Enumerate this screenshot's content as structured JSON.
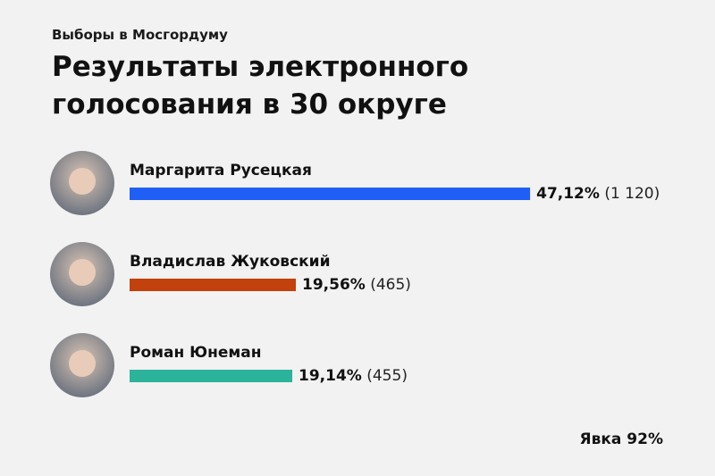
{
  "chart_data": {
    "type": "bar",
    "orientation": "horizontal",
    "subtitle": "Выборы в Мосгордуму",
    "title": "Результаты электронного голосования в 30 округе",
    "categories": [
      "Маргарита Русецкая",
      "Владислав Жуковский",
      "Роман Юнеман"
    ],
    "values": [
      47.12,
      19.56,
      19.14
    ],
    "value_labels": [
      "47,12%",
      "19,56%",
      "19,14%"
    ],
    "counts": [
      1120,
      465,
      455
    ],
    "count_labels": [
      "(1 120)",
      "(465)",
      "(455)"
    ],
    "colors": [
      "#1f5ff5",
      "#c2410c",
      "#2bb39b"
    ],
    "annotation": "Явка 92%"
  }
}
